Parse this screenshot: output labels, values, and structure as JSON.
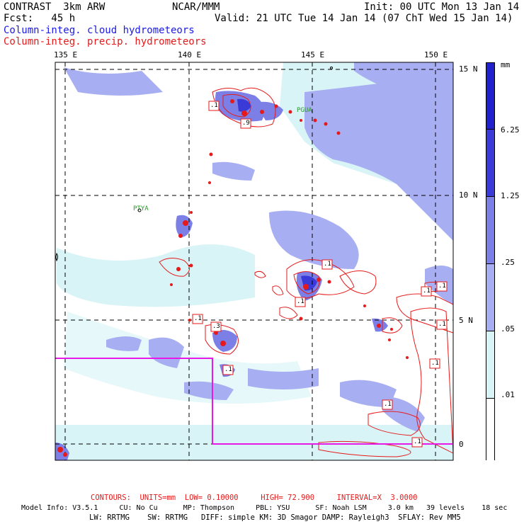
{
  "header": {
    "left_line1": "CONTRAST  3km ARW",
    "center_line1": "NCAR/MMM",
    "right_line1": "Init: 00 UTC Mon 13 Jan 14",
    "left_line2": "Fcst:   45 h",
    "right_line2": "Valid: 21 UTC Tue 14 Jan 14 (07 ChT Wed 15 Jan 14)",
    "field_shaded": "Column-integ. cloud hydrometeors",
    "field_contours": "Column-integ. precip. hydrometeors"
  },
  "map": {
    "lon_labels": [
      "135 E",
      "140 E",
      "145 E",
      "150 E"
    ],
    "lat_labels": [
      "15 N",
      "10 N",
      "5 N",
      "0"
    ],
    "sites": [
      "PGUA",
      "PTYA"
    ],
    "contour_labels": [
      ".1",
      ".9",
      ".1",
      ".1",
      ".1",
      ".1",
      ".3",
      ".1",
      ".1",
      ".1",
      ".1",
      ".1",
      ".1"
    ],
    "colors": {
      "land_fill": "#ccf2f7",
      "shade_light": "#d9f4f7",
      "shade_mid": "#a8aef2",
      "shade_dark": "#7c80e6",
      "shade_deep": "#3a3ad9",
      "contour": "#e61a1a",
      "domain_box": "#e619e6",
      "grid": "#000000"
    }
  },
  "colorbar": {
    "unit": "mm",
    "labels": [
      "6.25",
      "1.25",
      ".25",
      ".05",
      ".01"
    ],
    "colors": [
      "#2020cc",
      "#3a3ad9",
      "#7c80e6",
      "#a8aef2",
      "#d9f4f7",
      "#ffffff"
    ]
  },
  "footer": {
    "contours_line": "CONTOURS:  UNITS=mm  LOW= 0.10000     HIGH= 72.900     INTERVAL=X  3.0000",
    "model_line1": "Model Info: V3.5.1     CU: No Cu      MP: Thompson     PBL: YSU      SF: Noah LSM     3.0 km   39 levels    18 sec",
    "model_line2": "LW: RRTMG    SW: RRTMG   DIFF: simple KM: 3D Smagor DAMP: Rayleigh3  SFLAY: Rev MM5"
  }
}
